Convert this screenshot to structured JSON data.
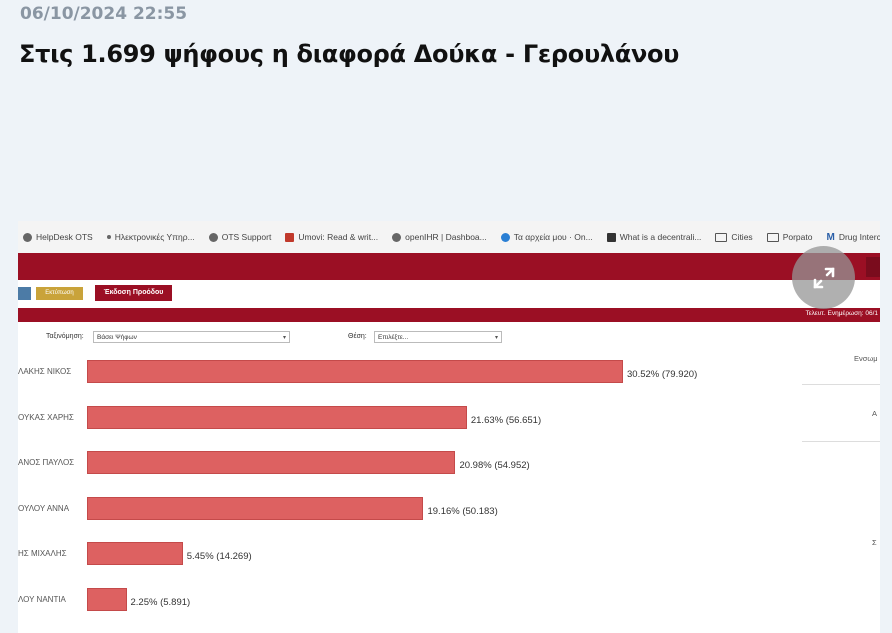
{
  "article": {
    "date": "06/10/2024 22:55",
    "title": "Στις 1.699 ψήφους η διαφορά Δούκα - Γερουλάνου"
  },
  "screenshot": {
    "bookmarks": [
      {
        "label": "HelpDesk OTS",
        "icon": "globe-icon"
      },
      {
        "label": "Ηλεκτρονικές Υπηρ...",
        "icon": "dot-icon"
      },
      {
        "label": "OTS Support",
        "icon": "globe-icon"
      },
      {
        "label": "Umovi: Read & writ...",
        "icon": "umovi-icon"
      },
      {
        "label": "openIHR | Dashboa...",
        "icon": "globe-icon"
      },
      {
        "label": "Τα αρχεία μου · On...",
        "icon": "cloud-icon"
      },
      {
        "label": "What is a decentrali...",
        "icon": "app-icon"
      },
      {
        "label": "Cities",
        "icon": "folder-icon"
      },
      {
        "label": "Porpato",
        "icon": "folder-icon"
      },
      {
        "label": "Drug Interc",
        "icon": "m-icon"
      }
    ],
    "toolbar": {
      "small_button_label": "Εκτύπωση",
      "main_button_label": "Έκδοση Προόδου"
    },
    "update_text": "Τελευτ. Ενημέρωση: 06/1",
    "filters": {
      "type_label": "Ταξινόμηση:",
      "type_value": "Βάσει Ψήφων",
      "position_label": "Θέση:",
      "position_value": "Επιλέξτε..."
    },
    "right_panel": {
      "text1": "Ενσωμ",
      "text2": "Α",
      "text3": "Σ"
    },
    "chart_data": {
      "type": "bar",
      "orientation": "horizontal",
      "categories": [
        "ΛΑΚΗΣ ΝΙΚΟΣ",
        "ΟΥΚΑΣ ΧΑΡΗΣ",
        "ΑΝΟΣ ΠΑΥΛΟΣ",
        "ΟΥΛΟΥ ΑΝΝΑ",
        "ΗΣ ΜΙΧΑΛΗΣ",
        "ΛΟΥ ΝΑΝΤΙΑ"
      ],
      "values": [
        30.52,
        21.63,
        20.98,
        19.16,
        5.45,
        2.25
      ],
      "labels": [
        "30.52% (79.920)",
        "21.63% (56.651)",
        "20.98% (54.952)",
        "19.16% (50.183)",
        "5.45% (14.269)",
        "2.25% (5.891)"
      ],
      "color": "#dd6161"
    }
  }
}
